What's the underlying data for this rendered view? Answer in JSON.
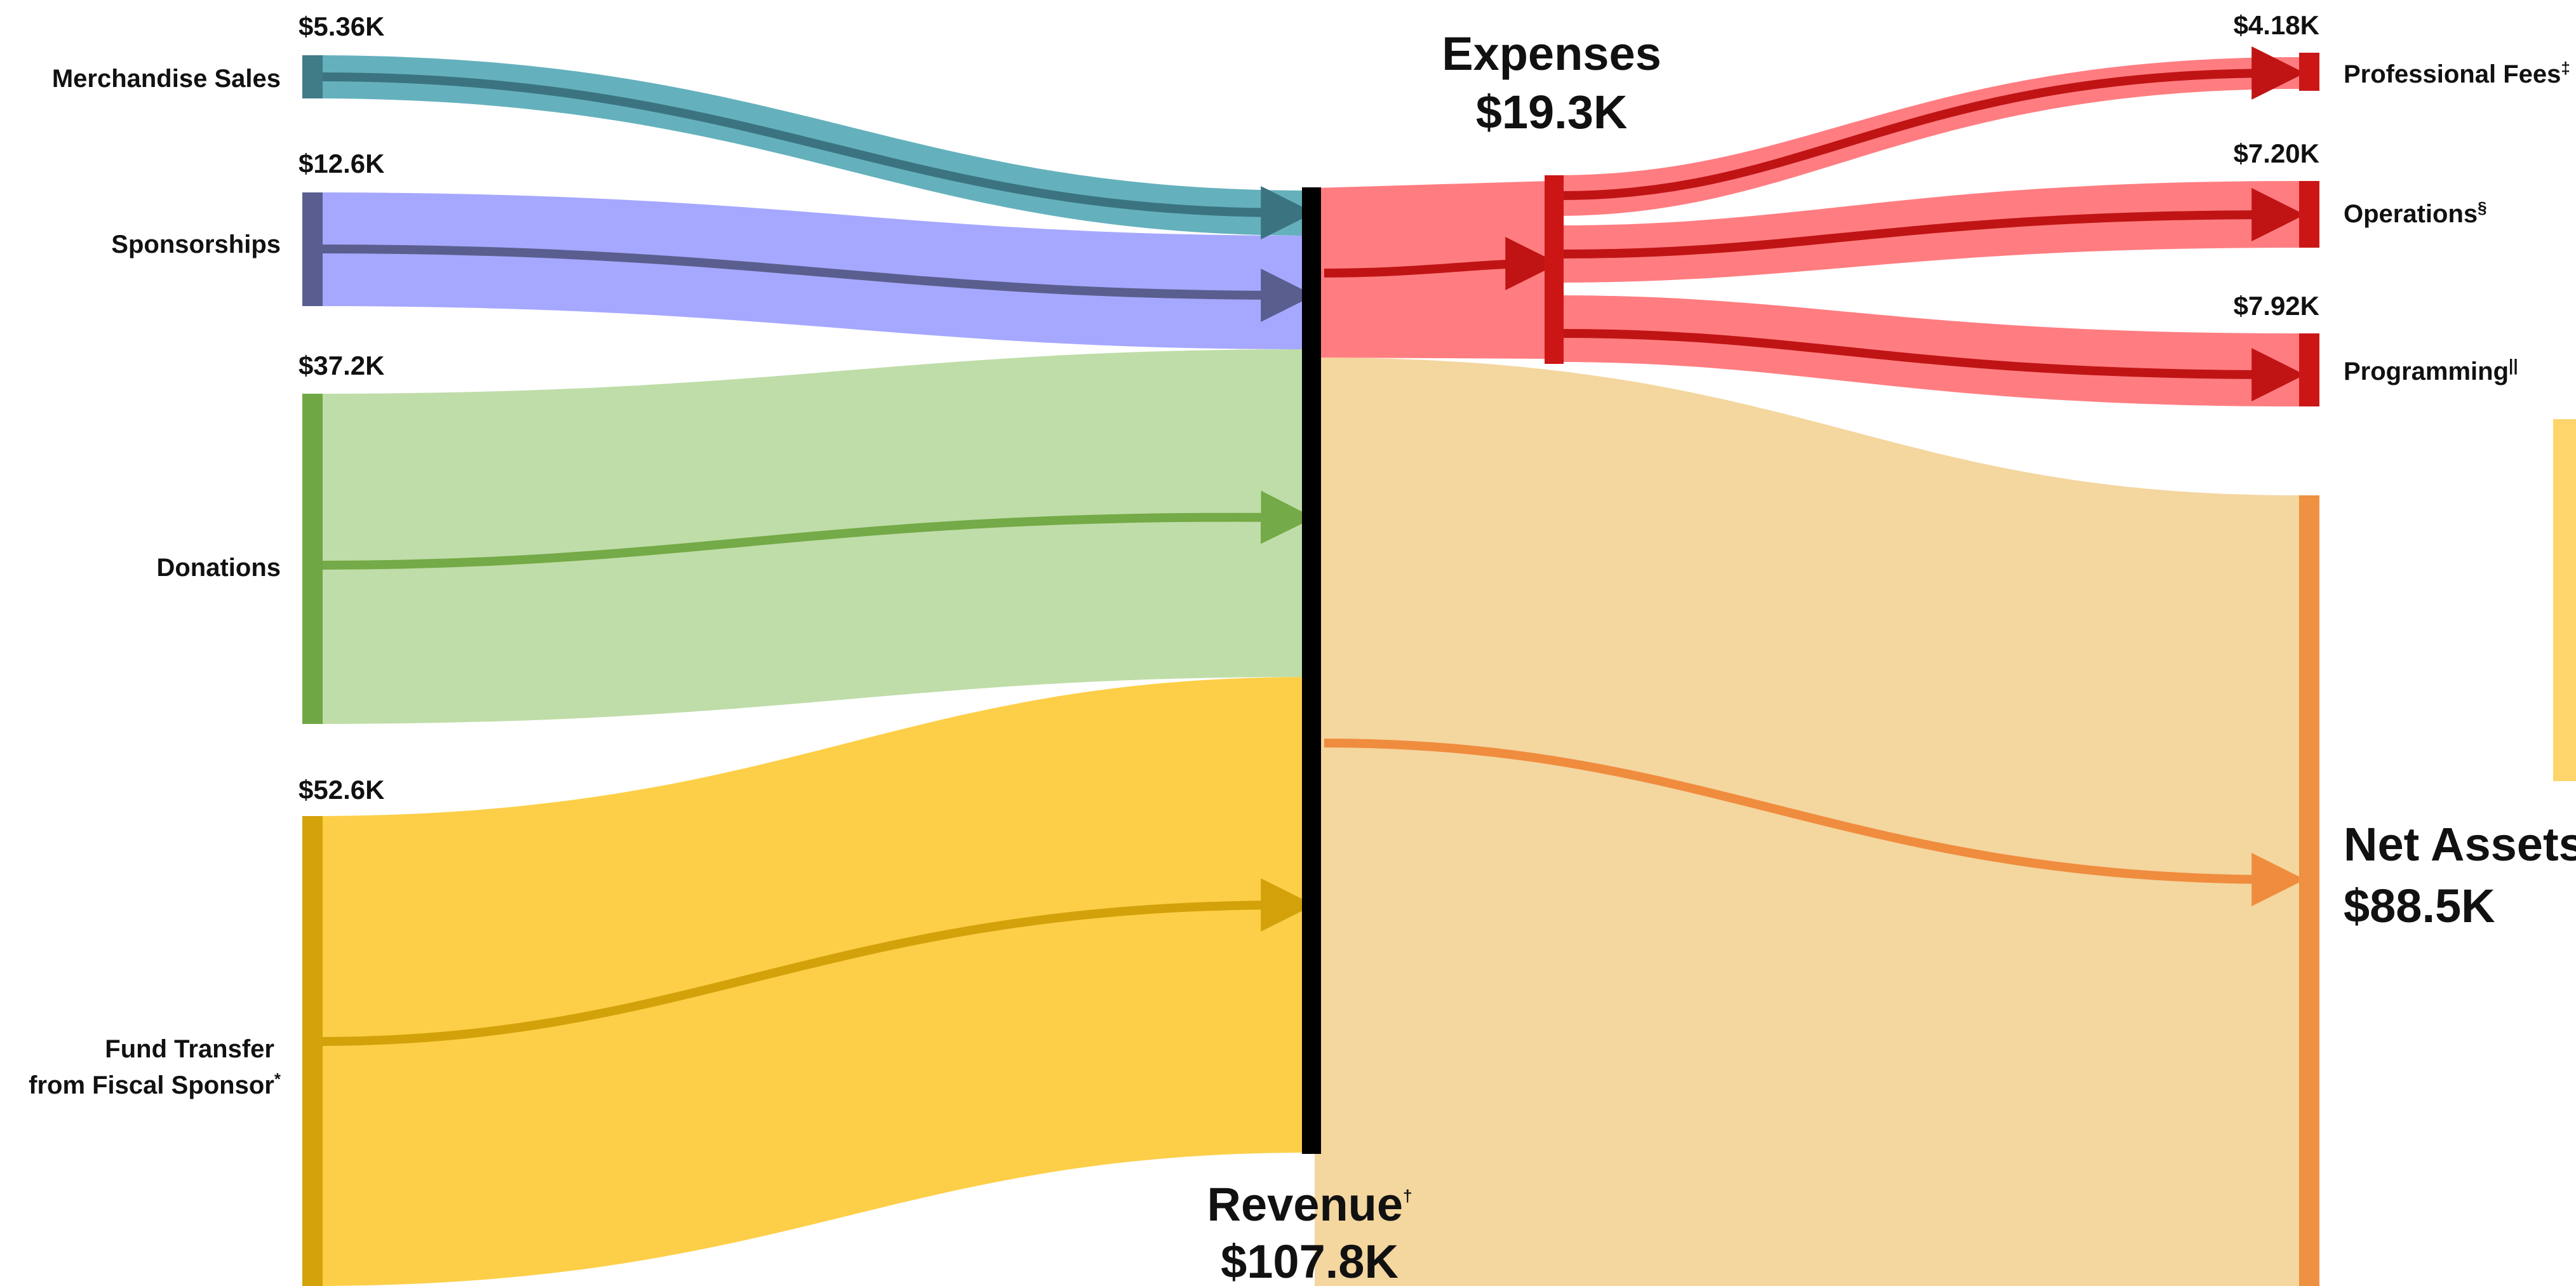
{
  "colors": {
    "merch": "#4ea6b4",
    "merch_dark": "#3b7480",
    "merch_bar": "#3f7c88",
    "spons": "#9a9cff",
    "spons_dark": "#5a5e8e",
    "spons_bar": "#5a5d90",
    "don": "#b6d89c",
    "don_dark": "#74aa47",
    "don_bar": "#6fa745",
    "fund": "#fdc82f",
    "fund_dark": "#d3a20a",
    "fund_bar": "#d4a30b",
    "exp": "#ff6b6f",
    "exp_dark": "#c01414",
    "exp_bar": "#cc1616",
    "net": "#f2d092",
    "net_dark": "#f08c3e",
    "net_bar": "#ef9142",
    "revenue_bar": "#000000",
    "side_tab": "#fdd56a"
  },
  "sources": [
    {
      "id": "merch",
      "name_lines": [
        "Merchandise Sales"
      ],
      "value_label": "$5.36K",
      "value": 5.36,
      "sup": ""
    },
    {
      "id": "spons",
      "name_lines": [
        "Sponsorships"
      ],
      "value_label": "$12.6K",
      "value": 12.6,
      "sup": ""
    },
    {
      "id": "don",
      "name_lines": [
        "Donations"
      ],
      "value_label": "$37.2K",
      "value": 37.2,
      "sup": ""
    },
    {
      "id": "fund",
      "name_lines": [
        "Fund Transfer",
        "from Fiscal Sponsor"
      ],
      "value_label": "$52.6K",
      "value": 52.6,
      "sup": "*"
    }
  ],
  "revenue": {
    "label": "Revenue",
    "sup": "†",
    "value_label": "$107.8K",
    "value": 107.8
  },
  "expenses": {
    "label": "Expenses",
    "value_label": "$19.3K",
    "value": 19.3
  },
  "net_assets": {
    "label": "Net Assets",
    "value_label": "$88.5K",
    "value": 88.5
  },
  "expense_items": [
    {
      "id": "prof",
      "name": "Professional Fees",
      "sup": "‡",
      "value_label": "$4.18K",
      "value": 4.18
    },
    {
      "id": "ops",
      "name": "Operations",
      "sup": "§",
      "value_label": "$7.20K",
      "value": 7.2
    },
    {
      "id": "prog",
      "name": "Programming",
      "sup": "||",
      "value_label": "$7.92K",
      "value": 7.92
    }
  ]
}
